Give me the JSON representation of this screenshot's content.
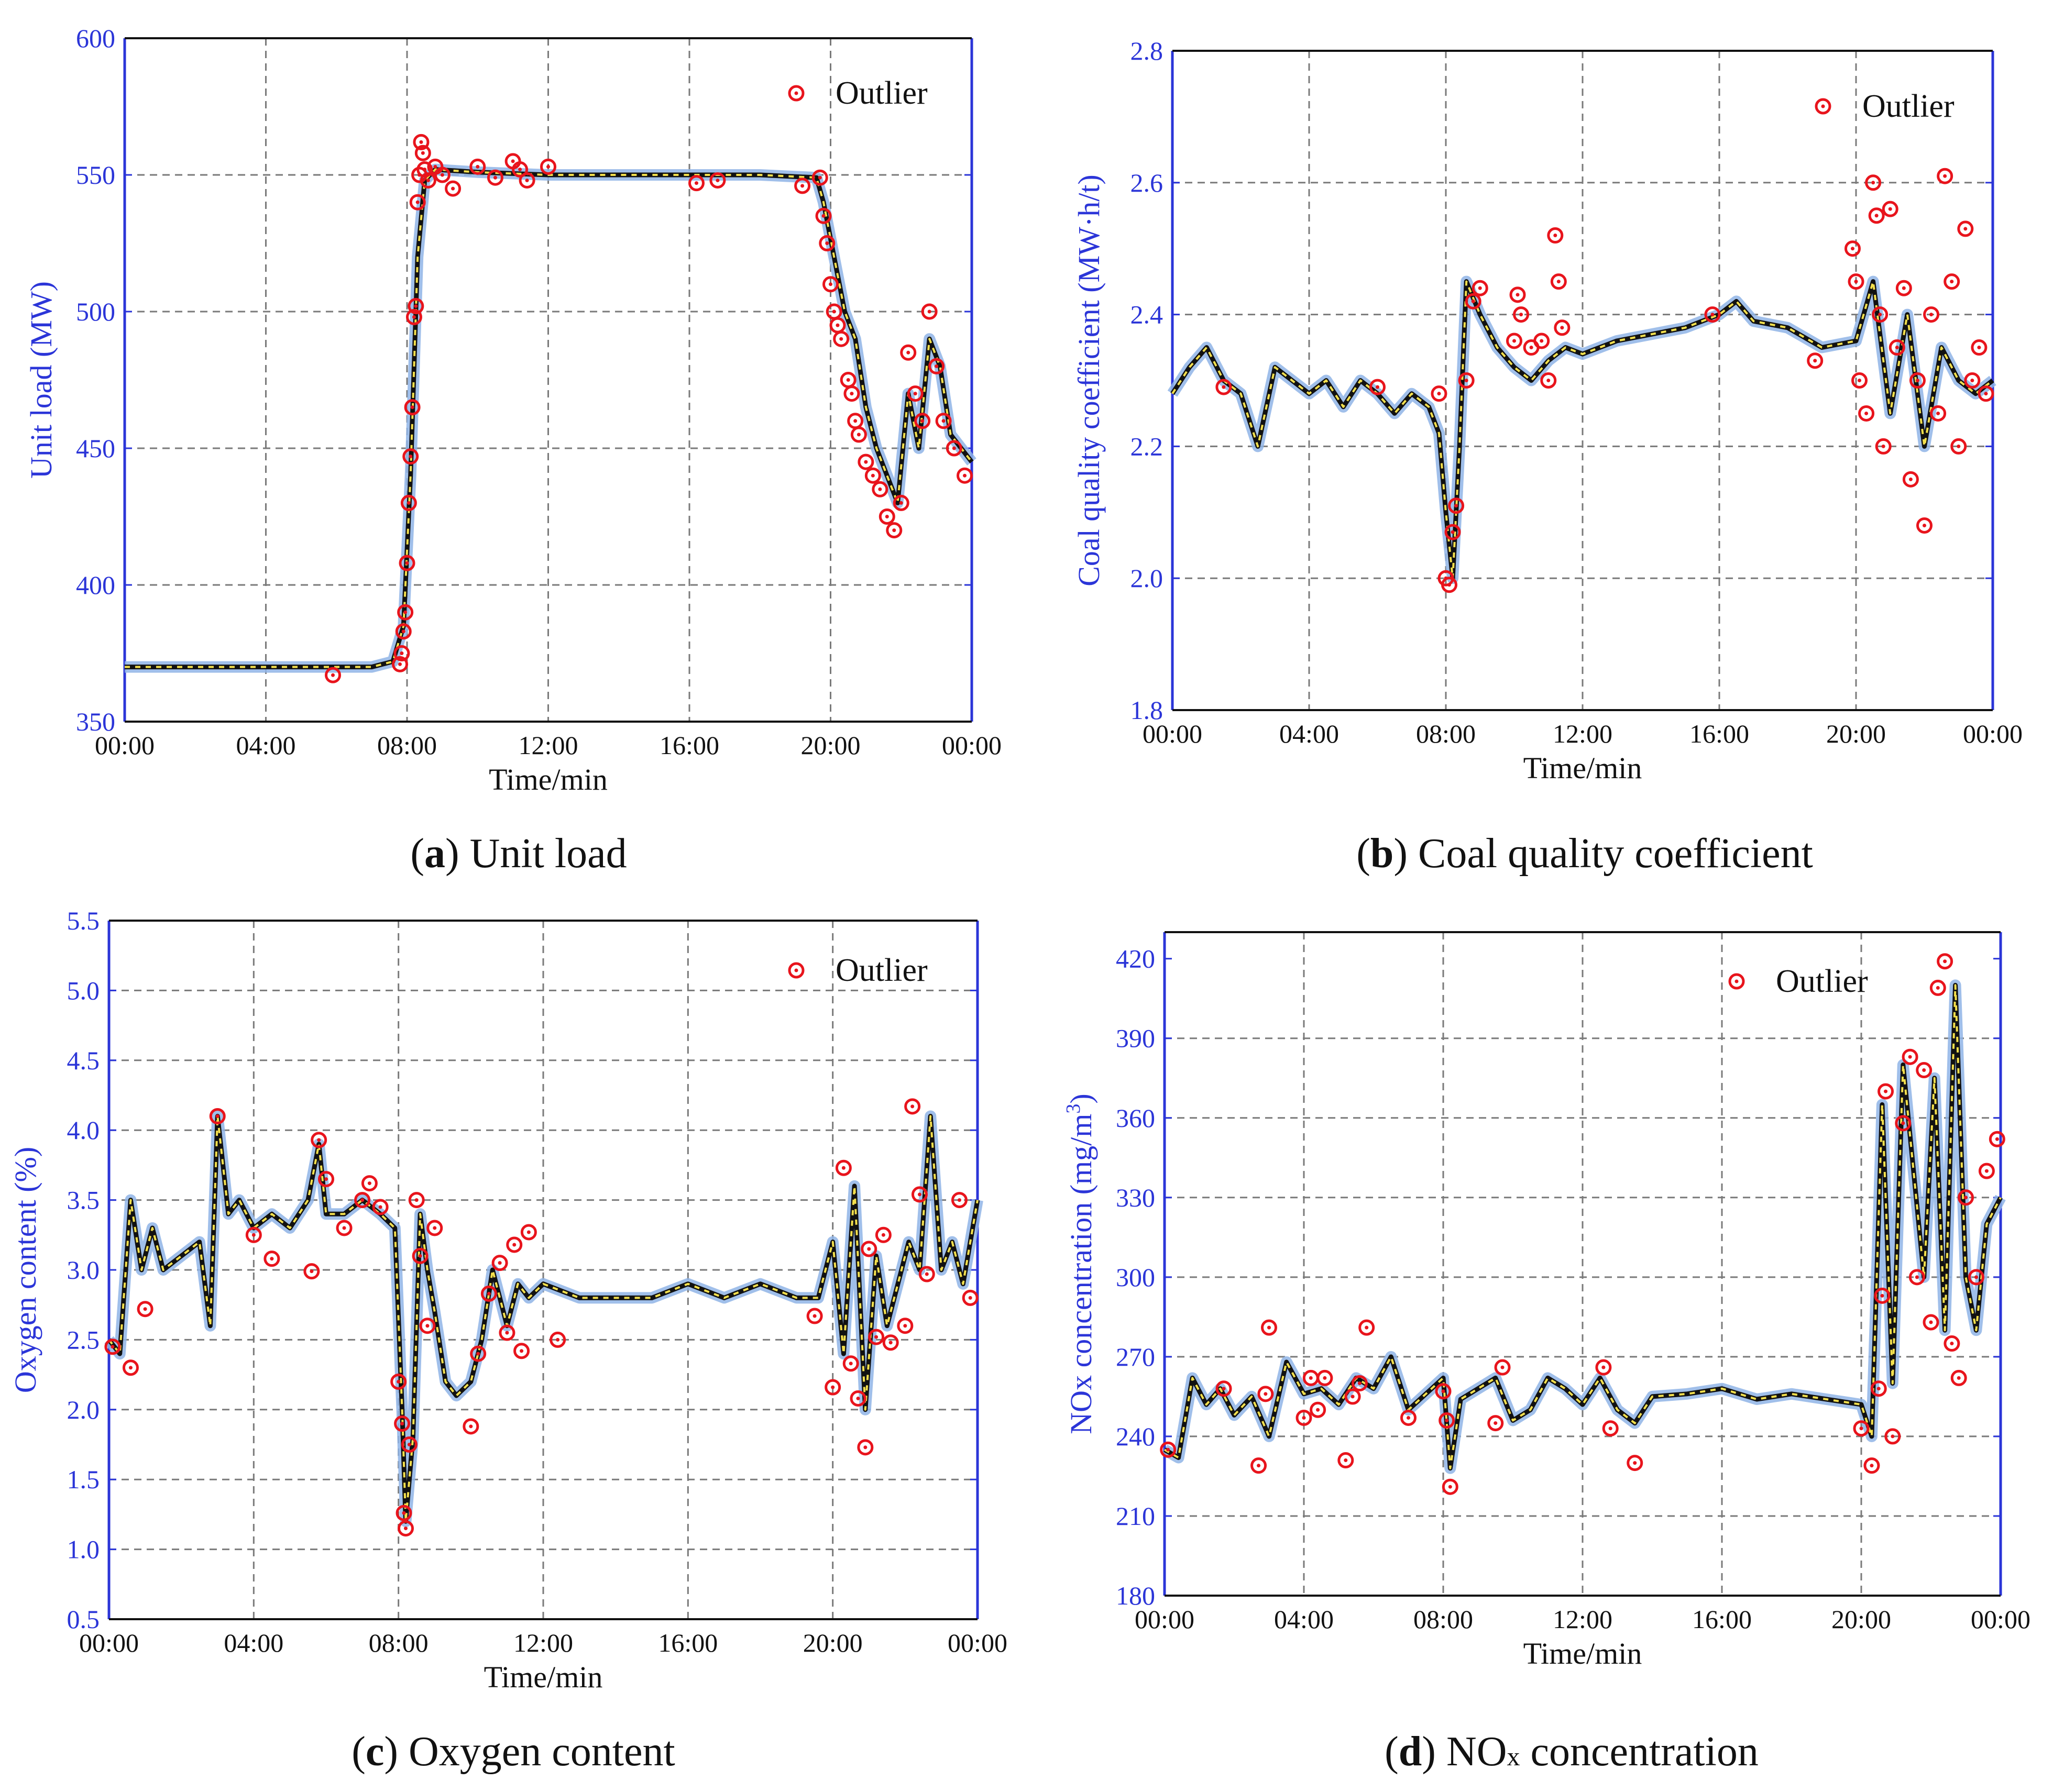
{
  "chart_data": [
    {
      "id": "a",
      "type": "line",
      "caption_letter": "a",
      "caption_text": "Unit load",
      "xlabel": "Time/min",
      "ylabel": "Unit load (MW)",
      "x_ticks": [
        "00:00",
        "04:00",
        "08:00",
        "12:00",
        "16:00",
        "20:00",
        "00:00"
      ],
      "xlim": [
        0,
        24
      ],
      "ylim": [
        350,
        600
      ],
      "y_ticks": [
        "350",
        "400",
        "450",
        "500",
        "550",
        "600"
      ],
      "grid": true,
      "legend": {
        "label": "Outlier",
        "placement": "top-right"
      },
      "series": [
        {
          "name": "Unit load",
          "x": [
            0,
            1,
            2,
            3,
            4,
            5,
            6,
            7,
            7.6,
            7.9,
            8.1,
            8.3,
            8.5,
            8.8,
            10,
            12,
            14,
            16,
            18,
            19.6,
            19.8,
            20.1,
            20.4,
            20.7,
            21,
            21.3,
            21.6,
            21.9,
            22.2,
            22.5,
            22.8,
            23.1,
            23.4,
            23.7,
            24
          ],
          "values": [
            370,
            370,
            370,
            370,
            370,
            370,
            370,
            370,
            372,
            385,
            440,
            520,
            548,
            552,
            551,
            550,
            550,
            550,
            550,
            549,
            540,
            520,
            500,
            490,
            465,
            450,
            440,
            430,
            470,
            450,
            490,
            480,
            455,
            450,
            445
          ]
        },
        {
          "name": "Outlier",
          "x": [
            5.9,
            7.8,
            7.85,
            7.9,
            7.95,
            8.0,
            8.05,
            8.1,
            8.15,
            8.2,
            8.25,
            8.3,
            8.35,
            8.4,
            8.45,
            8.5,
            8.6,
            8.8,
            9,
            9.3,
            10,
            10.5,
            11,
            11.2,
            11.4,
            12,
            16.2,
            16.8,
            19.2,
            19.7,
            19.8,
            19.9,
            20.0,
            20.1,
            20.2,
            20.3,
            20.5,
            20.6,
            20.7,
            20.8,
            21.0,
            21.2,
            21.4,
            21.6,
            21.8,
            22.0,
            22.2,
            22.4,
            22.6,
            22.8,
            23.0,
            23.2,
            23.5,
            23.8
          ],
          "values": [
            367,
            371,
            375,
            383,
            390,
            408,
            430,
            447,
            465,
            498,
            502,
            540,
            550,
            562,
            558,
            552,
            548,
            553,
            550,
            545,
            553,
            549,
            555,
            552,
            548,
            553,
            547,
            548,
            546,
            549,
            535,
            525,
            510,
            500,
            495,
            490,
            475,
            470,
            460,
            455,
            445,
            440,
            435,
            425,
            420,
            430,
            485,
            470,
            460,
            500,
            480,
            460,
            450,
            440
          ]
        }
      ]
    },
    {
      "id": "b",
      "type": "line",
      "caption_letter": "b",
      "caption_text": "Coal quality coefficient",
      "xlabel": "Time/min",
      "ylabel": "Coal quality coefficient (MW·h/t)",
      "x_ticks": [
        "00:00",
        "04:00",
        "08:00",
        "12:00",
        "16:00",
        "20:00",
        "00:00"
      ],
      "xlim": [
        0,
        24
      ],
      "ylim": [
        1.8,
        2.8
      ],
      "y_ticks": [
        "1.8",
        "2.0",
        "2.2",
        "2.4",
        "2.6",
        "2.8"
      ],
      "grid": true,
      "legend": {
        "label": "Outlier",
        "placement": "top-right"
      },
      "series": [
        {
          "name": "Coal quality coefficient",
          "x": [
            0,
            0.5,
            1,
            1.5,
            2,
            2.5,
            3,
            3.5,
            4,
            4.5,
            5,
            5.5,
            6,
            6.5,
            7,
            7.5,
            7.8,
            8.0,
            8.2,
            8.4,
            8.6,
            9,
            9.5,
            10,
            10.5,
            11,
            11.5,
            12,
            13,
            14,
            15,
            16,
            16.5,
            17,
            18,
            19,
            20,
            20.5,
            21,
            21.5,
            22,
            22.5,
            23,
            23.5,
            24
          ],
          "values": [
            2.28,
            2.32,
            2.35,
            2.3,
            2.28,
            2.2,
            2.32,
            2.3,
            2.28,
            2.3,
            2.26,
            2.3,
            2.28,
            2.25,
            2.28,
            2.26,
            2.22,
            2.1,
            2.0,
            2.2,
            2.45,
            2.4,
            2.35,
            2.32,
            2.3,
            2.33,
            2.35,
            2.34,
            2.36,
            2.37,
            2.38,
            2.4,
            2.42,
            2.39,
            2.38,
            2.35,
            2.36,
            2.45,
            2.25,
            2.4,
            2.2,
            2.35,
            2.3,
            2.28,
            2.3
          ]
        },
        {
          "name": "Outlier",
          "x": [
            1.5,
            6.0,
            7.8,
            8.0,
            8.1,
            8.2,
            8.3,
            8.6,
            8.8,
            9.0,
            10.0,
            10.1,
            10.2,
            10.5,
            10.8,
            11.0,
            11.2,
            11.3,
            11.4,
            15.8,
            18.8,
            19.9,
            20.0,
            20.1,
            20.3,
            20.5,
            20.6,
            20.7,
            20.8,
            21.0,
            21.2,
            21.4,
            21.6,
            21.8,
            22.0,
            22.2,
            22.4,
            22.6,
            22.8,
            23.0,
            23.2,
            23.4,
            23.6,
            23.8
          ],
          "values": [
            2.29,
            2.29,
            2.28,
            2.0,
            1.99,
            2.07,
            2.11,
            2.3,
            2.42,
            2.44,
            2.36,
            2.43,
            2.4,
            2.35,
            2.36,
            2.3,
            2.52,
            2.45,
            2.38,
            2.4,
            2.33,
            2.5,
            2.45,
            2.3,
            2.25,
            2.6,
            2.55,
            2.4,
            2.2,
            2.56,
            2.35,
            2.44,
            2.15,
            2.3,
            2.08,
            2.4,
            2.25,
            2.61,
            2.45,
            2.2,
            2.53,
            2.3,
            2.35,
            2.28
          ]
        }
      ]
    },
    {
      "id": "c",
      "type": "line",
      "caption_letter": "c",
      "caption_text": "Oxygen content",
      "xlabel": "Time/min",
      "ylabel": "Oxygen content (%)",
      "x_ticks": [
        "00:00",
        "04:00",
        "08:00",
        "12:00",
        "16:00",
        "20:00",
        "00:00"
      ],
      "xlim": [
        0,
        24
      ],
      "ylim": [
        0.5,
        5.5
      ],
      "y_ticks": [
        "0.5",
        "1.0",
        "1.5",
        "2.0",
        "2.5",
        "3.0",
        "3.5",
        "4.0",
        "4.5",
        "5.0",
        "5.5"
      ],
      "grid": true,
      "legend": {
        "label": "Outlier",
        "placement": "top-right"
      },
      "series": [
        {
          "name": "Oxygen content",
          "x": [
            0,
            0.3,
            0.6,
            0.9,
            1.2,
            1.5,
            2.0,
            2.5,
            2.8,
            3.0,
            3.3,
            3.6,
            4,
            4.5,
            5,
            5.5,
            5.8,
            6,
            6.5,
            7,
            7.5,
            7.9,
            8.1,
            8.2,
            8.4,
            8.6,
            8.8,
            9,
            9.3,
            9.6,
            10,
            10.3,
            10.6,
            11,
            11.3,
            11.6,
            12,
            13,
            14,
            15,
            16,
            17,
            18,
            19,
            19.6,
            20,
            20.3,
            20.6,
            20.9,
            21.2,
            21.5,
            21.8,
            22.1,
            22.4,
            22.7,
            23,
            23.3,
            23.6,
            24
          ],
          "values": [
            2.5,
            2.4,
            3.5,
            3.0,
            3.3,
            3.0,
            3.1,
            3.2,
            2.6,
            4.1,
            3.4,
            3.5,
            3.3,
            3.4,
            3.3,
            3.5,
            3.9,
            3.4,
            3.4,
            3.5,
            3.4,
            3.3,
            2.0,
            1.2,
            1.8,
            3.4,
            3.0,
            2.7,
            2.2,
            2.1,
            2.2,
            2.5,
            3.0,
            2.6,
            2.9,
            2.8,
            2.9,
            2.8,
            2.8,
            2.8,
            2.9,
            2.8,
            2.9,
            2.8,
            2.8,
            3.2,
            2.4,
            3.6,
            2.0,
            3.1,
            2.6,
            2.9,
            3.2,
            3.0,
            4.1,
            3.0,
            3.2,
            2.9,
            3.5
          ]
        },
        {
          "name": "Outlier",
          "x": [
            0.1,
            0.6,
            1.0,
            3.0,
            4.0,
            4.5,
            5.6,
            5.8,
            6.0,
            6.5,
            7.0,
            7.2,
            7.5,
            8.0,
            8.1,
            8.15,
            8.2,
            8.3,
            8.5,
            8.6,
            8.8,
            9.0,
            10.0,
            10.2,
            10.5,
            10.8,
            11.0,
            11.2,
            11.4,
            11.6,
            12.4,
            19.5,
            20.0,
            20.3,
            20.5,
            20.7,
            20.9,
            21.0,
            21.2,
            21.4,
            21.6,
            22.0,
            22.2,
            22.4,
            22.6,
            23.5,
            23.8
          ],
          "values": [
            2.45,
            2.3,
            2.72,
            4.1,
            3.25,
            3.08,
            2.99,
            3.93,
            3.65,
            3.3,
            3.5,
            3.62,
            3.45,
            2.2,
            1.9,
            1.26,
            1.15,
            1.75,
            3.5,
            3.1,
            2.6,
            3.3,
            1.88,
            2.4,
            2.83,
            3.05,
            2.55,
            3.18,
            2.42,
            3.27,
            2.5,
            2.67,
            2.16,
            3.73,
            2.33,
            2.08,
            1.73,
            3.15,
            2.52,
            3.25,
            2.48,
            2.6,
            4.17,
            3.54,
            2.97,
            3.5,
            2.8
          ]
        }
      ]
    },
    {
      "id": "d",
      "type": "line",
      "caption_letter": "d",
      "caption_text_before": "NO",
      "caption_sub": "x",
      "caption_text_after": " concentration",
      "xlabel": "Time/min",
      "ylabel": "NOx concentration (mg/m3)",
      "ylabel_main": "NOx concentration (mg/m",
      "ylabel_sup": "3",
      "ylabel_close": ")",
      "x_ticks": [
        "00:00",
        "04:00",
        "08:00",
        "12:00",
        "16:00",
        "20:00",
        "00:00"
      ],
      "xlim": [
        0,
        24
      ],
      "ylim": [
        180,
        430
      ],
      "y_ticks": [
        "180",
        "210",
        "240",
        "270",
        "300",
        "330",
        "360",
        "390",
        "420"
      ],
      "grid": true,
      "legend": {
        "label": "Outlier",
        "placement": "top-right"
      },
      "series": [
        {
          "name": "NOx concentration",
          "x": [
            0,
            0.4,
            0.8,
            1.2,
            1.6,
            2,
            2.5,
            3,
            3.5,
            4,
            4.5,
            5,
            5.5,
            6,
            6.5,
            7,
            7.5,
            8,
            8.2,
            8.5,
            9,
            9.5,
            10,
            10.5,
            11,
            11.5,
            12,
            12.5,
            13,
            13.5,
            14,
            15,
            16,
            17,
            18,
            19,
            20,
            20.3,
            20.6,
            20.9,
            21.2,
            21.5,
            21.8,
            22.1,
            22.4,
            22.7,
            23,
            23.3,
            23.6,
            24
          ],
          "values": [
            235,
            232,
            262,
            252,
            258,
            248,
            255,
            240,
            268,
            256,
            258,
            252,
            262,
            258,
            270,
            250,
            256,
            262,
            228,
            254,
            258,
            262,
            246,
            250,
            262,
            258,
            252,
            262,
            250,
            245,
            255,
            256,
            258,
            254,
            256,
            254,
            252,
            240,
            365,
            260,
            380,
            340,
            300,
            375,
            280,
            410,
            300,
            280,
            320,
            330
          ]
        },
        {
          "name": "Outlier",
          "x": [
            0.1,
            1.7,
            2.7,
            2.9,
            3.0,
            4.0,
            4.2,
            4.4,
            4.6,
            5.2,
            5.4,
            5.6,
            5.8,
            7.0,
            8.0,
            8.1,
            8.2,
            9.5,
            9.7,
            12.6,
            12.8,
            13.5,
            20.0,
            20.3,
            20.5,
            20.6,
            20.7,
            20.9,
            21.2,
            21.4,
            21.6,
            21.8,
            22.0,
            22.2,
            22.4,
            22.6,
            22.8,
            23.0,
            23.3,
            23.6,
            23.9
          ],
          "values": [
            235,
            258,
            229,
            256,
            281,
            247,
            262,
            250,
            262,
            231,
            255,
            260,
            281,
            247,
            257,
            246,
            221,
            245,
            266,
            266,
            243,
            230,
            243,
            229,
            258,
            293,
            370,
            240,
            358,
            383,
            300,
            378,
            283,
            409,
            419,
            275,
            262,
            330,
            300,
            340,
            352
          ]
        }
      ]
    }
  ]
}
